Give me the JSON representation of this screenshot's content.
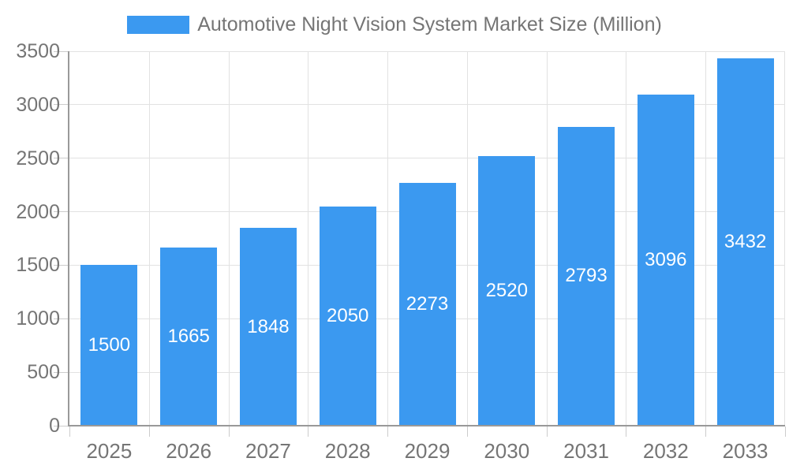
{
  "chart_data": {
    "type": "bar",
    "title": "Automotive Night Vision System Market Size (Million)",
    "categories": [
      "2025",
      "2026",
      "2027",
      "2028",
      "2029",
      "2030",
      "2031",
      "2032",
      "2033"
    ],
    "values": [
      1500,
      1665,
      1848,
      2050,
      2273,
      2520,
      2793,
      3096,
      3432
    ],
    "value_labels": "inside-center",
    "xlabel": "",
    "ylabel": "",
    "ylim": [
      0,
      3500
    ],
    "yticks": [
      0,
      500,
      1000,
      1500,
      2000,
      2500,
      3000,
      3500
    ],
    "grid": true,
    "legend_position": "top-center",
    "colors": {
      "bar": "#3b99f0",
      "value_label": "#ffffff",
      "axis_label": "#757575",
      "legend_text": "#757575",
      "gridline": "#e2e2e2",
      "axis_line": "#999999",
      "tick": "#cccccc",
      "background": "#ffffff"
    }
  }
}
